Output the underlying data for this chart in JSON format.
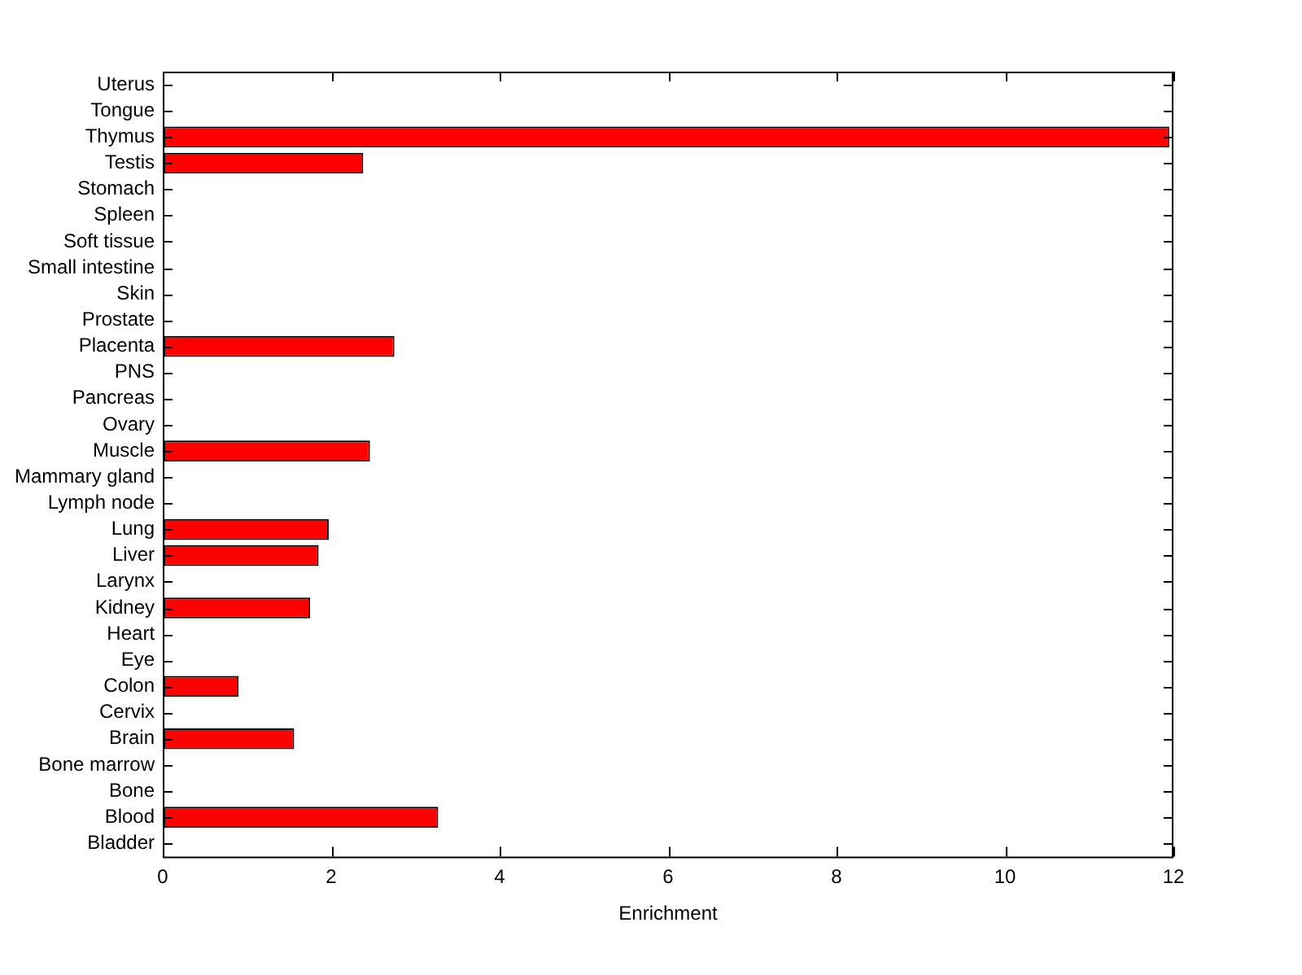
{
  "chart_data": {
    "type": "bar",
    "orientation": "horizontal",
    "xlabel": "Enrichment",
    "categories": [
      "Uterus",
      "Tongue",
      "Thymus",
      "Testis",
      "Stomach",
      "Spleen",
      "Soft tissue",
      "Small intestine",
      "Skin",
      "Prostate",
      "Placenta",
      "PNS",
      "Pancreas",
      "Ovary",
      "Muscle",
      "Mammary gland",
      "Lymph node",
      "Lung",
      "Liver",
      "Larynx",
      "Kidney",
      "Heart",
      "Eye",
      "Colon",
      "Cervix",
      "Brain",
      "Bone marrow",
      "Bone",
      "Blood",
      "Bladder"
    ],
    "values": [
      0,
      0,
      11.95,
      2.38,
      0,
      0,
      0,
      0,
      0,
      0,
      2.75,
      0,
      0,
      0,
      2.46,
      0,
      0,
      1.97,
      1.85,
      0,
      1.75,
      0,
      0,
      0.9,
      0,
      1.56,
      0,
      0,
      3.27,
      0
    ],
    "color": "#ff0000",
    "xlim": [
      0,
      12
    ],
    "xticks": [
      0,
      2,
      4,
      6,
      8,
      10,
      12
    ],
    "grid": false,
    "legend": false
  }
}
